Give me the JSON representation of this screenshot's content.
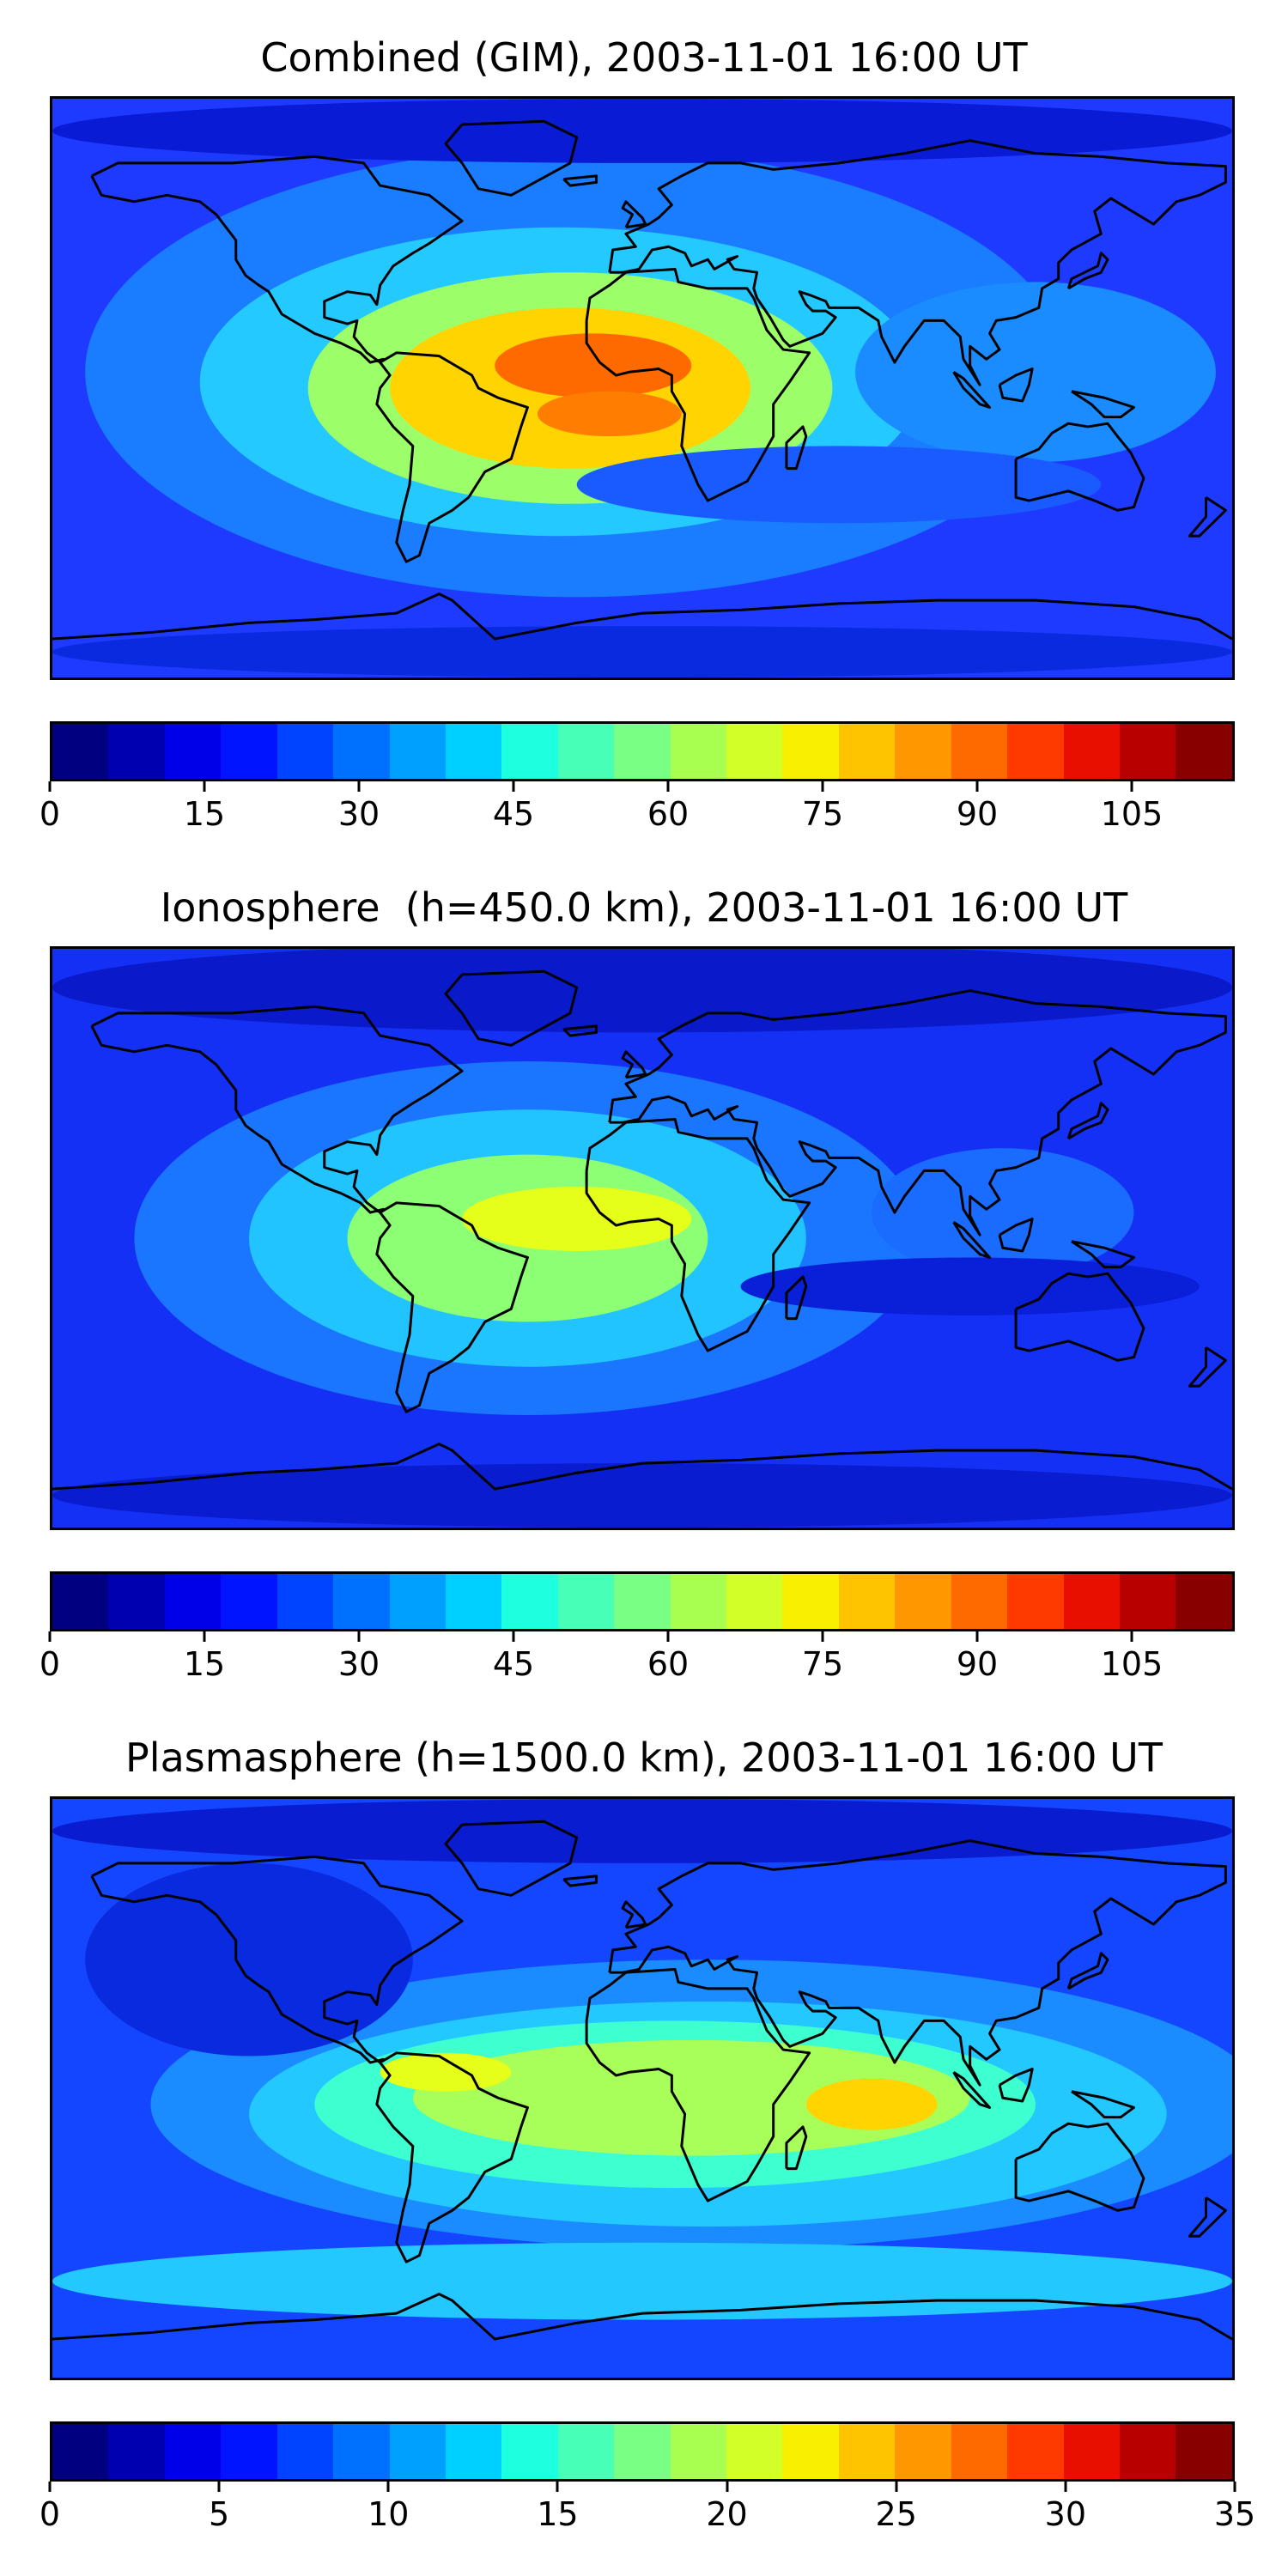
{
  "panels": [
    {
      "title": "Combined (GIM), 2003-11-01 16:00 UT",
      "colorbar": {
        "min": 0,
        "max": 115,
        "step": 5,
        "ticks": [
          "0",
          "15",
          "30",
          "45",
          "60",
          "75",
          "90",
          "105"
        ],
        "tick_values": [
          0,
          15,
          30,
          45,
          60,
          75,
          90,
          105
        ]
      },
      "field": {
        "background": "#1f3aff",
        "blobs": [
          {
            "lon": -20,
            "lat": 5,
            "rx": 150,
            "ry": 70,
            "color": "#1a7dff"
          },
          {
            "lon": -25,
            "lat": 2,
            "rx": 110,
            "ry": 48,
            "color": "#24c9ff"
          },
          {
            "lon": -22,
            "lat": 0,
            "rx": 80,
            "ry": 36,
            "color": "#9cff6a"
          },
          {
            "lon": -22,
            "lat": 0,
            "rx": 55,
            "ry": 25,
            "color": "#ffd400"
          },
          {
            "lon": -15,
            "lat": 7,
            "rx": 30,
            "ry": 10,
            "color": "#ff6a00"
          },
          {
            "lon": -10,
            "lat": -8,
            "rx": 22,
            "ry": 7,
            "color": "#ff7d00"
          },
          {
            "lon": 120,
            "lat": 5,
            "rx": 55,
            "ry": 28,
            "color": "#1a8cff"
          },
          {
            "lon": 60,
            "lat": -30,
            "rx": 80,
            "ry": 12,
            "color": "#1a5bff"
          },
          {
            "lon": 0,
            "lat": 80,
            "rx": 180,
            "ry": 10,
            "color": "#0a1bd6"
          },
          {
            "lon": 0,
            "lat": -82,
            "rx": 180,
            "ry": 8,
            "color": "#0a2ae0"
          }
        ]
      }
    },
    {
      "title": "Ionosphere  (h=450.0 km), 2003-11-01 16:00 UT",
      "colorbar": {
        "min": 0,
        "max": 115,
        "step": 5,
        "ticks": [
          "0",
          "15",
          "30",
          "45",
          "60",
          "75",
          "90",
          "105"
        ],
        "tick_values": [
          0,
          15,
          30,
          45,
          60,
          75,
          90,
          105
        ]
      },
      "field": {
        "background": "#1530f5",
        "blobs": [
          {
            "lon": -35,
            "lat": 0,
            "rx": 120,
            "ry": 55,
            "color": "#1a75ff"
          },
          {
            "lon": -35,
            "lat": 0,
            "rx": 85,
            "ry": 40,
            "color": "#22c4ff"
          },
          {
            "lon": -35,
            "lat": 0,
            "rx": 55,
            "ry": 26,
            "color": "#8dff74"
          },
          {
            "lon": -20,
            "lat": 6,
            "rx": 35,
            "ry": 10,
            "color": "#e6ff1a"
          },
          {
            "lon": 110,
            "lat": 8,
            "rx": 40,
            "ry": 20,
            "color": "#1a6bff"
          },
          {
            "lon": 100,
            "lat": -15,
            "rx": 70,
            "ry": 9,
            "color": "#0a20d8"
          },
          {
            "lon": 0,
            "lat": 78,
            "rx": 180,
            "ry": 14,
            "color": "#0a1acb"
          },
          {
            "lon": 0,
            "lat": -80,
            "rx": 180,
            "ry": 10,
            "color": "#0a1ccf"
          }
        ]
      }
    },
    {
      "title": "Plasmasphere (h=1500.0 km), 2003-11-01 16:00 UT",
      "colorbar": {
        "min": 0,
        "max": 35,
        "step": 2.5,
        "ticks": [
          "0",
          "5",
          "10",
          "15",
          "20",
          "25",
          "30",
          "35"
        ],
        "tick_values": [
          0,
          5,
          10,
          15,
          20,
          25,
          30,
          35
        ]
      },
      "field": {
        "background": "#1546ff",
        "blobs": [
          {
            "lon": 20,
            "lat": -5,
            "rx": 170,
            "ry": 45,
            "color": "#1a8cff"
          },
          {
            "lon": 20,
            "lat": -8,
            "rx": 140,
            "ry": 35,
            "color": "#22c8ff"
          },
          {
            "lon": 10,
            "lat": -5,
            "rx": 110,
            "ry": 26,
            "color": "#3dffd0"
          },
          {
            "lon": 15,
            "lat": -3,
            "rx": 85,
            "ry": 18,
            "color": "#a8ff5a"
          },
          {
            "lon": 70,
            "lat": -5,
            "rx": 20,
            "ry": 8,
            "color": "#ffd400"
          },
          {
            "lon": -60,
            "lat": 5,
            "rx": 20,
            "ry": 6,
            "color": "#e6ff1a"
          },
          {
            "lon": -120,
            "lat": 40,
            "rx": 50,
            "ry": 30,
            "color": "#0a2ae0"
          },
          {
            "lon": 0,
            "lat": -60,
            "rx": 180,
            "ry": 12,
            "color": "#22c8ff"
          },
          {
            "lon": 0,
            "lat": 80,
            "rx": 180,
            "ry": 10,
            "color": "#0a1ccf"
          }
        ]
      }
    }
  ],
  "colormap": [
    "#000080",
    "#0000b0",
    "#0000e8",
    "#0014ff",
    "#0044ff",
    "#0070ff",
    "#00a0ff",
    "#00d0ff",
    "#1effe0",
    "#48ffb8",
    "#78ff84",
    "#a8ff50",
    "#d2ff28",
    "#f8f000",
    "#ffc400",
    "#ff9800",
    "#ff6a00",
    "#ff3a00",
    "#e80e00",
    "#b80000",
    "#880000"
  ],
  "coastline_color": "#000000"
}
